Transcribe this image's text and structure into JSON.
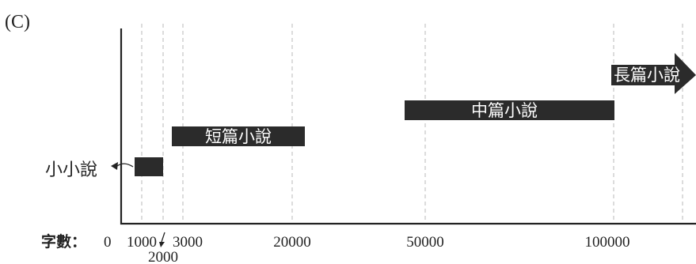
{
  "panel_label": "(C)",
  "axis": {
    "label": "字數：",
    "ticks": [
      {
        "value": 0,
        "label": "0"
      },
      {
        "value": 1000,
        "label": "1000"
      },
      {
        "value": 2000,
        "label": "2000"
      },
      {
        "value": 3000,
        "label": "3000"
      },
      {
        "value": 20000,
        "label": "20000"
      },
      {
        "value": 50000,
        "label": "50000"
      },
      {
        "value": 100000,
        "label": "100000"
      }
    ]
  },
  "categories": [
    {
      "label": "小小說",
      "from": 1000,
      "to": 2000
    },
    {
      "label": "短篇小說",
      "from": 2000,
      "to": 20000
    },
    {
      "label": "中篇小說",
      "from": 45000,
      "to": 100000
    },
    {
      "label": "長篇小說",
      "from": 100000,
      "to": null
    }
  ],
  "colors": {
    "bar": "#2b2b2b",
    "axis": "#222222",
    "grid": "#b8b8b8"
  }
}
